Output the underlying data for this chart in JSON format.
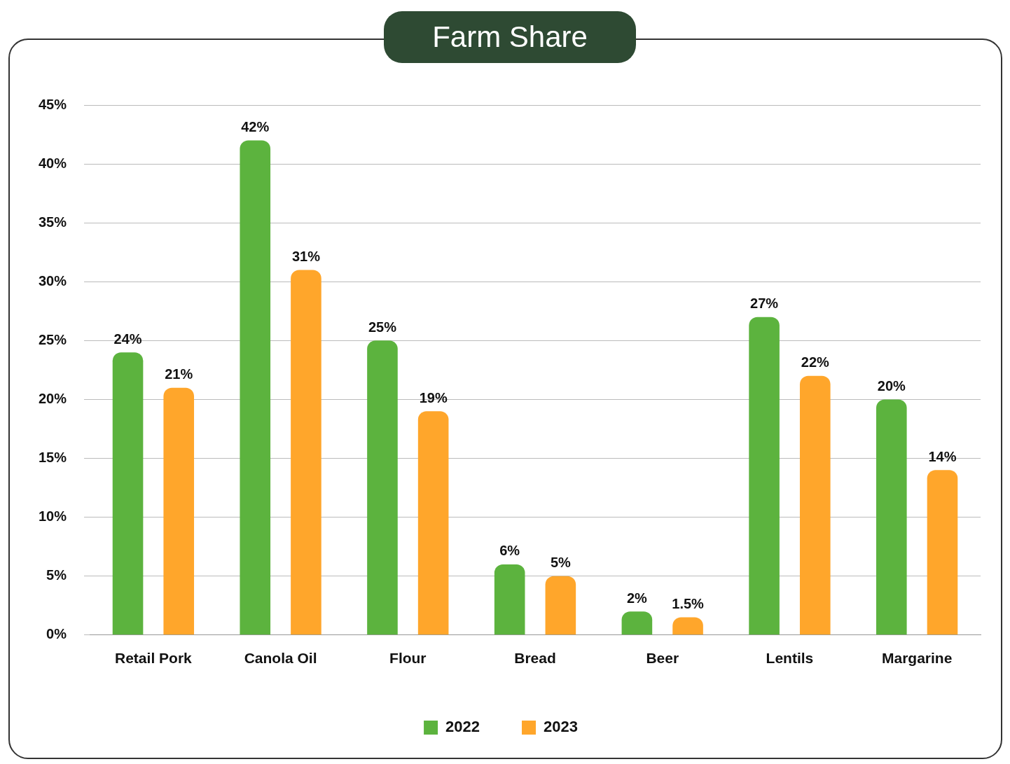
{
  "chart_data": {
    "type": "bar",
    "title": "Farm Share",
    "categories": [
      "Retail Pork",
      "Canola Oil",
      "Flour",
      "Bread",
      "Beer",
      "Lentils",
      "Margarine"
    ],
    "series": [
      {
        "name": "2022",
        "color": "#5cb33e",
        "values": [
          24,
          42,
          25,
          6,
          2,
          27,
          20
        ],
        "value_labels": [
          "24%",
          "42%",
          "25%",
          "6%",
          "2%",
          "27%",
          "20%"
        ]
      },
      {
        "name": "2023",
        "color": "#ffa62b",
        "values": [
          21,
          31,
          19,
          5,
          1.5,
          22,
          14
        ],
        "value_labels": [
          "21%",
          "31%",
          "19%",
          "5%",
          "1.5%",
          "22%",
          "14%"
        ]
      }
    ],
    "ylim": [
      0,
      45
    ],
    "yticks": [
      {
        "value": 0,
        "label": "0%"
      },
      {
        "value": 5,
        "label": "5%"
      },
      {
        "value": 10,
        "label": "10%"
      },
      {
        "value": 15,
        "label": "15%"
      },
      {
        "value": 20,
        "label": "20%"
      },
      {
        "value": 25,
        "label": "25%"
      },
      {
        "value": 30,
        "label": "30%"
      },
      {
        "value": 35,
        "label": "35%"
      },
      {
        "value": 40,
        "label": "40%"
      },
      {
        "value": 45,
        "label": "45%"
      }
    ],
    "grid": "y",
    "legend": "bottom"
  }
}
